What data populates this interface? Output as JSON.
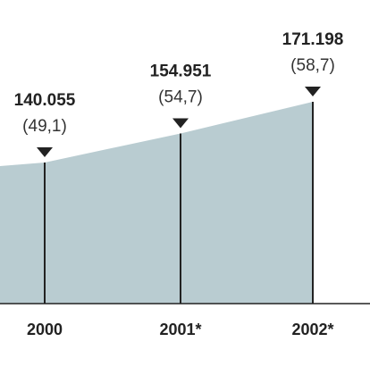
{
  "chart_data": {
    "type": "area",
    "categories": [
      "2000",
      "2001*",
      "2002*"
    ],
    "values": [
      140055,
      154951,
      171198
    ],
    "value_labels": [
      "140.055",
      "154.951",
      "171.198"
    ],
    "shares": [
      49.1,
      54.7,
      58.7
    ],
    "share_labels": [
      "(49,1)",
      "(54,7)",
      "(58,7)"
    ],
    "color": "#b9ccd1"
  }
}
